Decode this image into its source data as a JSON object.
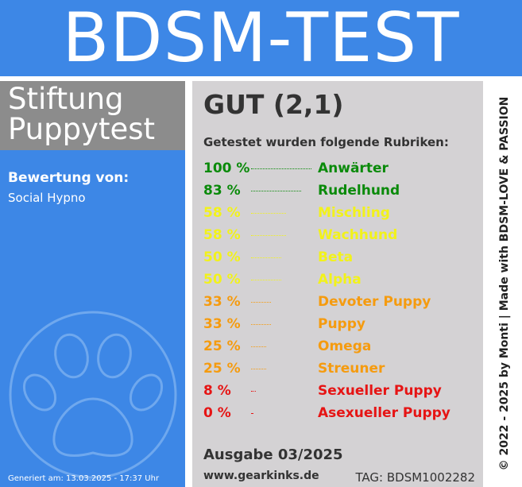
{
  "banner": {
    "title": "BDSM-TEST"
  },
  "sidebar": {
    "brand_line1": "Stiftung",
    "brand_line2": "Puppytest",
    "rating_label": "Bewertung von:",
    "rating_value": "Social Hypno",
    "generated": "Generiert am: 13.03.2025 - 17:37 Uhr",
    "paw_icon": "paw-icon"
  },
  "main": {
    "grade": "GUT (2,1)",
    "tested_label": "Getestet wurden folgende Rubriken:",
    "issue": "Ausgabe 03/2025",
    "website": "www.gearkinks.de",
    "tag": "TAG: BDSM1002282"
  },
  "results": [
    {
      "pct": "100 %",
      "value": 100,
      "name": "Anwärter",
      "color": "#0a8a0a"
    },
    {
      "pct": "83 %",
      "value": 83,
      "name": "Rudelhund",
      "color": "#0a8a0a"
    },
    {
      "pct": "58 %",
      "value": 58,
      "name": "Mischling",
      "color": "#f2f21a"
    },
    {
      "pct": "58 %",
      "value": 58,
      "name": "Wachhund",
      "color": "#f2f21a"
    },
    {
      "pct": "50 %",
      "value": 50,
      "name": "Beta",
      "color": "#f2f21a"
    },
    {
      "pct": "50 %",
      "value": 50,
      "name": "Alpha",
      "color": "#f2f21a"
    },
    {
      "pct": "33 %",
      "value": 33,
      "name": "Devoter Puppy",
      "color": "#f59b0f"
    },
    {
      "pct": "33 %",
      "value": 33,
      "name": "Puppy",
      "color": "#f59b0f"
    },
    {
      "pct": "25 %",
      "value": 25,
      "name": "Omega",
      "color": "#f59b0f"
    },
    {
      "pct": "25 %",
      "value": 25,
      "name": "Streuner",
      "color": "#f59b0f"
    },
    {
      "pct": "8 %",
      "value": 8,
      "name": "Sexueller Puppy",
      "color": "#e61414"
    },
    {
      "pct": "0 %",
      "value": 0,
      "name": "Asexueller Puppy",
      "color": "#e61414"
    }
  ],
  "side": {
    "credit": "© 2022 - 2025 by Monti | Made with BDSM-LOVE & PASSION"
  }
}
